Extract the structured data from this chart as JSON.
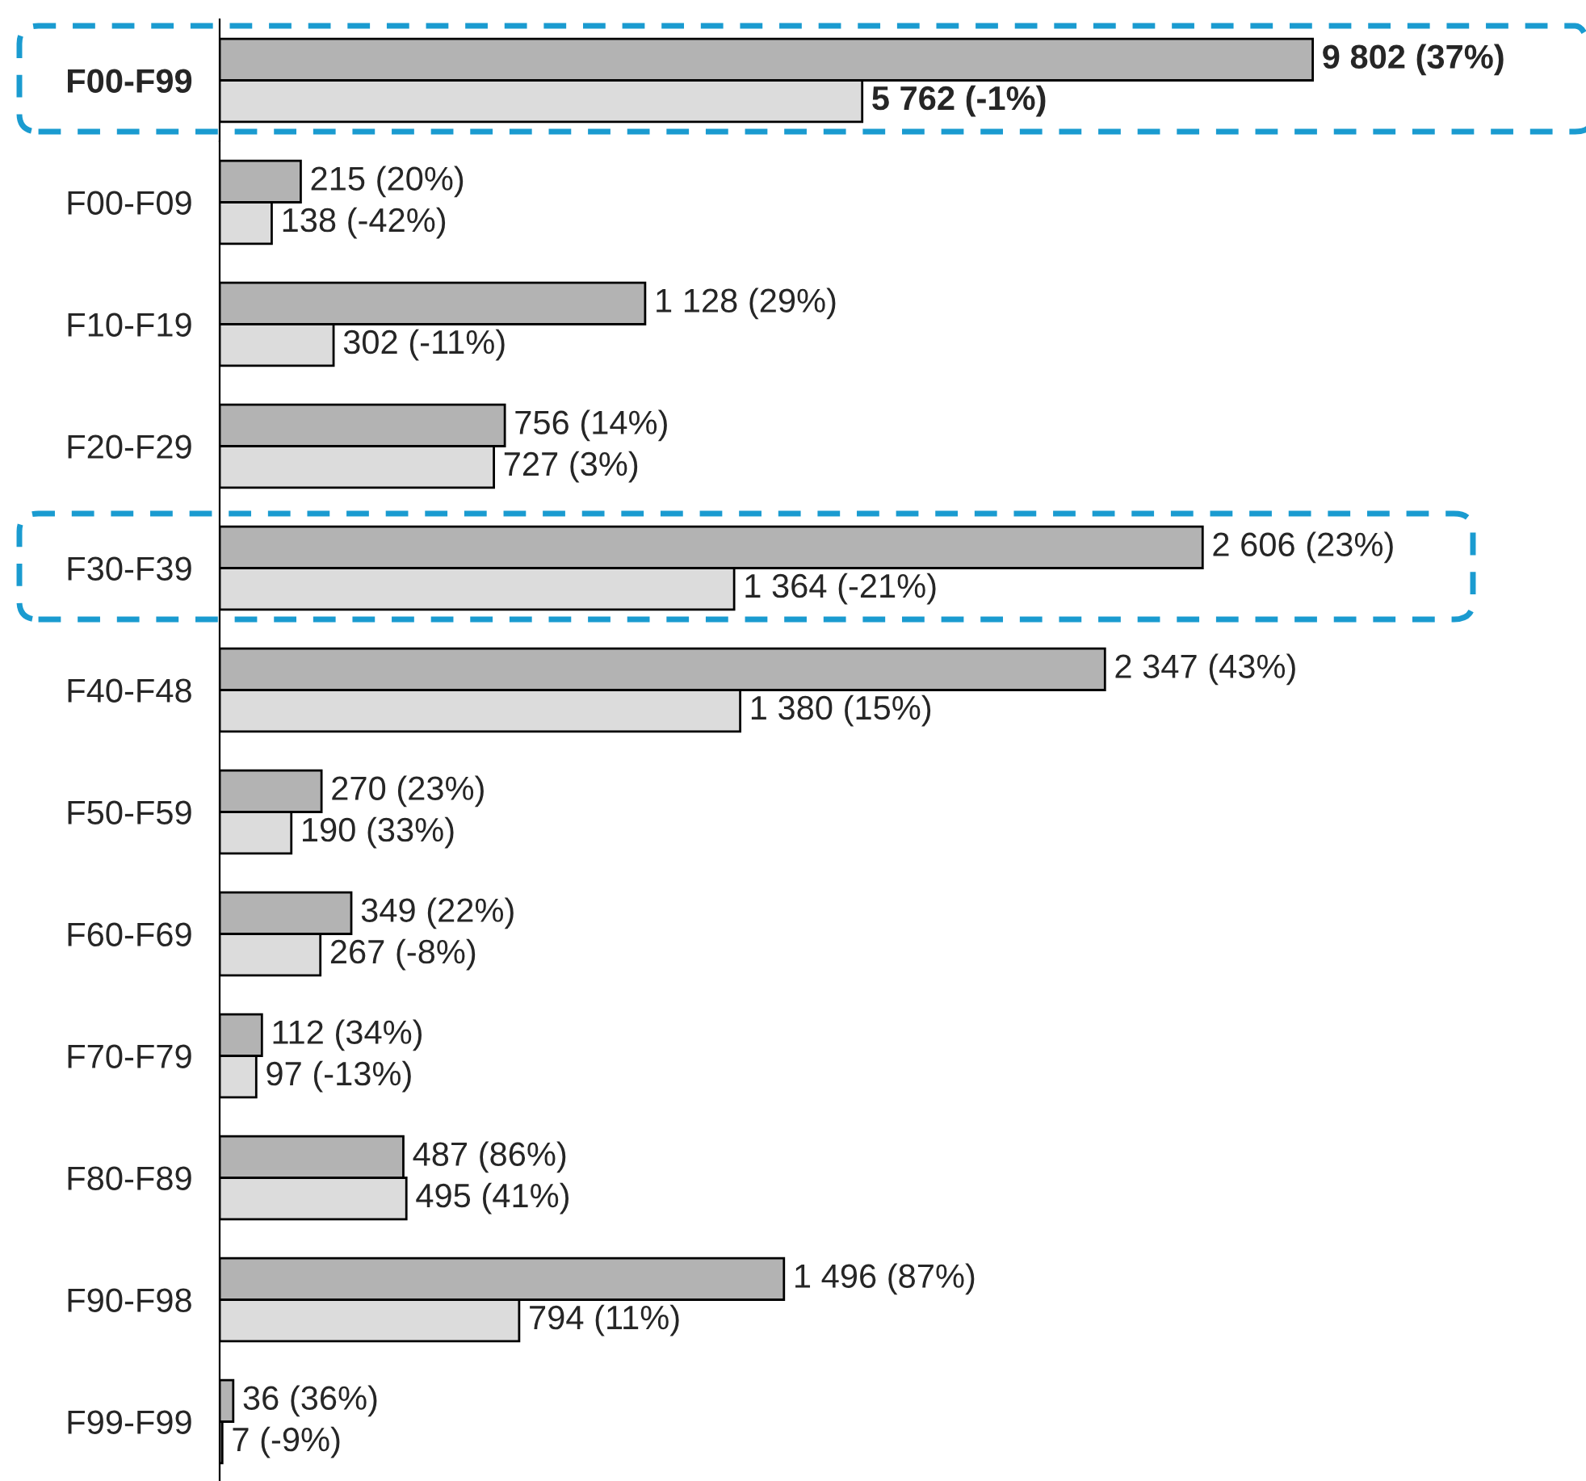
{
  "chart_data": [
    {
      "type": "bar",
      "orientation": "horizontal",
      "categories": [
        "F00-F99"
      ],
      "data_labels": false,
      "series": [
        {
          "color": "#b3b3b3",
          "values": [
            9802
          ],
          "value_labels": [
            "9 802 (37%)"
          ]
        },
        {
          "color": "#dcdcdc",
          "values": [
            5762
          ],
          "value_labels": [
            "5 762 (-1%)"
          ]
        }
      ]
    },
    {
      "type": "bar",
      "orientation": "horizontal",
      "categories": [
        "F00-F09",
        "F10-F19",
        "F20-F29",
        "F30-F39",
        "F40-F48",
        "F50-F59",
        "F60-F69",
        "F70-F79",
        "F80-F89",
        "F90-F98",
        "F99-F99"
      ],
      "data_labels": false,
      "series": [
        {
          "color": "#b3b3b3",
          "values": [
            215,
            1128,
            756,
            2606,
            2347,
            270,
            349,
            112,
            487,
            1496,
            36
          ],
          "value_labels": [
            "215 (20%)",
            "1 128 (29%)",
            "756 (14%)",
            "2 606 (23%)",
            "2 347 (43%)",
            "270 (23%)",
            "349 (22%)",
            "112 (34%)",
            "487 (86%)",
            "1 496 (87%)",
            "36 (36%)"
          ]
        },
        {
          "color": "#dcdcdc",
          "values": [
            138,
            302,
            727,
            1364,
            1380,
            190,
            267,
            97,
            495,
            794,
            7
          ],
          "value_labels": [
            "138 (-42%)",
            "302 (-11%)",
            "727 (3%)",
            "1 364 (-21%)",
            "1 380 (15%)",
            "190 (33%)",
            "267 (-8%)",
            "97 (-13%)",
            "495 (41%)",
            "794 (11%)",
            "7 (-9%)"
          ]
        }
      ]
    }
  ]
}
